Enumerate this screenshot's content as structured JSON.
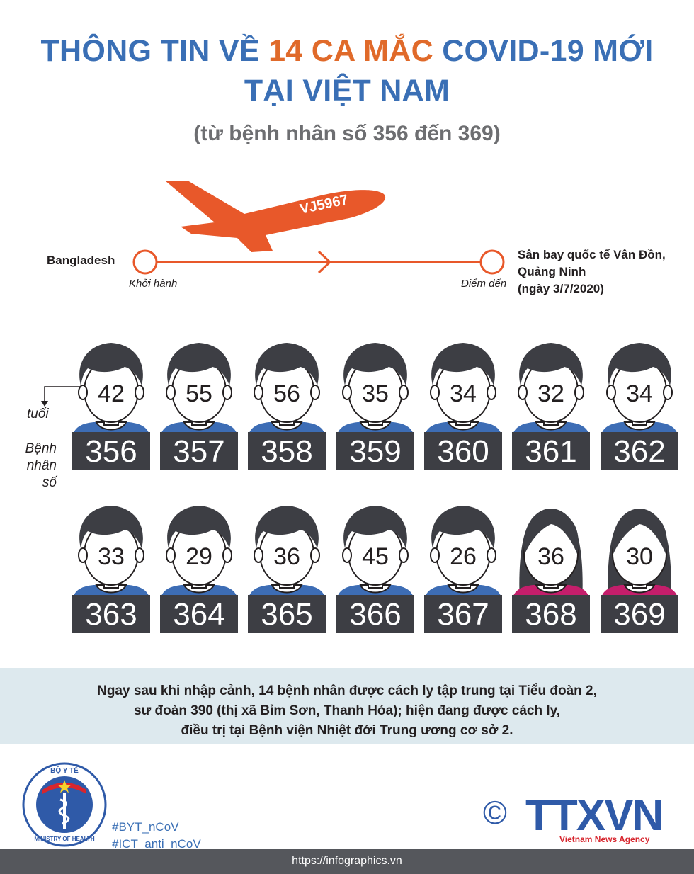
{
  "title_line1_pre": "THÔNG TIN VỀ ",
  "title_line1_hl": "14 CA MẮC",
  "title_line1_post": " COVID-19 MỚI",
  "title_line2": "TẠI VIỆT NAM",
  "subtitle": "(từ bệnh nhân số 356 đến 369)",
  "flight": {
    "code": "VJ5967",
    "origin": "Bangladesh",
    "origin_note": "Khởi hành",
    "dest_line1": "Sân bay quốc tế Vân Đồn,",
    "dest_line2": "Quảng Ninh",
    "dest_line3": "(ngày 3/7/2020)",
    "dest_note": "Điểm đến"
  },
  "legend": {
    "age_label": "tuổi",
    "patient_line1": "Bệnh",
    "patient_line2": "nhân",
    "patient_line3": "số"
  },
  "colors": {
    "title_blue": "#3a6fb5",
    "title_orange": "#e06a2a",
    "plane_orange": "#e8582a",
    "shirt_male": "#3d6db5",
    "shirt_female": "#c41e6b",
    "hair": "#3d3e44",
    "id_box": "#3d3e44"
  },
  "patients": [
    {
      "age": "42",
      "id": "356",
      "gender": "male"
    },
    {
      "age": "55",
      "id": "357",
      "gender": "male"
    },
    {
      "age": "56",
      "id": "358",
      "gender": "male"
    },
    {
      "age": "35",
      "id": "359",
      "gender": "male"
    },
    {
      "age": "34",
      "id": "360",
      "gender": "male"
    },
    {
      "age": "32",
      "id": "361",
      "gender": "male"
    },
    {
      "age": "34",
      "id": "362",
      "gender": "male"
    },
    {
      "age": "33",
      "id": "363",
      "gender": "male"
    },
    {
      "age": "29",
      "id": "364",
      "gender": "male"
    },
    {
      "age": "36",
      "id": "365",
      "gender": "male"
    },
    {
      "age": "45",
      "id": "366",
      "gender": "male"
    },
    {
      "age": "26",
      "id": "367",
      "gender": "male"
    },
    {
      "age": "36",
      "id": "368",
      "gender": "female"
    },
    {
      "age": "30",
      "id": "369",
      "gender": "female"
    }
  ],
  "note": {
    "line1": "Ngay sau khi nhập cảnh, 14 bệnh nhân được cách ly tập trung tại Tiểu đoàn 2,",
    "line2": "sư đoàn 390 (thị xã Bỉm Sơn, Thanh Hóa); hiện đang được cách ly,",
    "line3": "điều trị tại Bệnh viện Nhiệt đới Trung ương cơ sở 2."
  },
  "logo": {
    "ministry_top": "BỘ Y TẾ",
    "ministry_bottom": "MINISTRY OF HEALTH",
    "agency": "TTXVN",
    "agency_sub": "Vietnam News Agency",
    "copyright": "©"
  },
  "hashtags": [
    "#BYT_nCoV",
    "#ICT_anti_nCoV"
  ],
  "footer_url": "https://infographics.vn"
}
